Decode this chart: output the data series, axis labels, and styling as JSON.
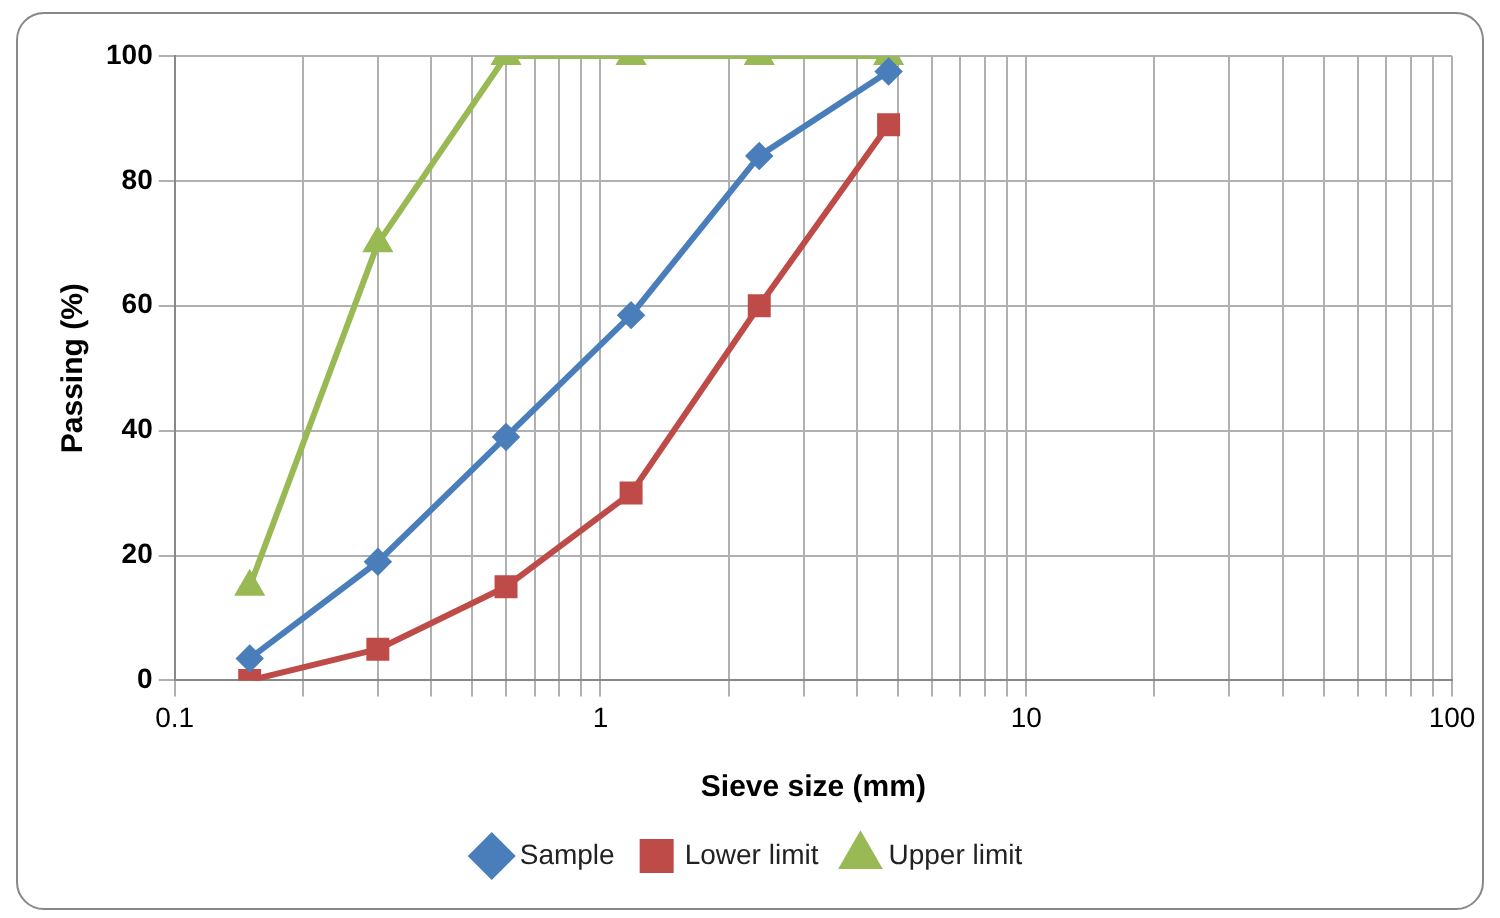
{
  "chart_data": {
    "type": "line",
    "xlabel": "Sieve size (mm)",
    "ylabel": "Passing (%)",
    "x": [
      0.15,
      0.3,
      0.6,
      1.18,
      2.36,
      4.75
    ],
    "series": [
      {
        "name": "Sample",
        "color": "#4a7ebb",
        "marker": "diamond",
        "values": [
          3.5,
          19,
          39,
          58.5,
          84,
          97.5
        ]
      },
      {
        "name": "Lower limit",
        "color": "#be4b48",
        "marker": "square",
        "values": [
          0,
          5,
          15,
          30,
          60,
          89
        ]
      },
      {
        "name": "Upper limit",
        "color": "#98b954",
        "marker": "triangle",
        "values": [
          15,
          70,
          100,
          100,
          100,
          100
        ]
      }
    ],
    "log": "x",
    "xlim": [
      0.1,
      100
    ],
    "xticks": [
      0.1,
      {
        "value": 0.2,
        "label": null
      },
      {
        "value": 0.3,
        "label": null
      },
      {
        "value": 0.4,
        "label": null
      },
      {
        "value": 0.5,
        "label": null
      },
      {
        "value": 0.6,
        "label": null
      },
      {
        "value": 0.7,
        "label": null
      },
      {
        "value": 0.8,
        "label": null
      },
      {
        "value": 0.9,
        "label": null
      },
      1,
      {
        "value": 2,
        "label": null
      },
      {
        "value": 3,
        "label": null
      },
      {
        "value": 4,
        "label": null
      },
      {
        "value": 5,
        "label": null
      },
      {
        "value": 6,
        "label": null
      },
      {
        "value": 7,
        "label": null
      },
      {
        "value": 8,
        "label": null
      },
      {
        "value": 9,
        "label": null
      },
      10,
      {
        "value": 20,
        "label": null
      },
      {
        "value": 30,
        "label": null
      },
      {
        "value": 40,
        "label": null
      },
      {
        "value": 50,
        "label": null
      },
      {
        "value": 60,
        "label": null
      },
      {
        "value": 70,
        "label": null
      },
      {
        "value": 80,
        "label": null
      },
      {
        "value": 90,
        "label": null
      },
      100
    ],
    "ylim": [
      0,
      100
    ],
    "yticks": [
      0,
      20,
      40,
      60,
      80,
      100
    ],
    "grid": true,
    "legend": "bottom",
    "line_style": "solid"
  }
}
